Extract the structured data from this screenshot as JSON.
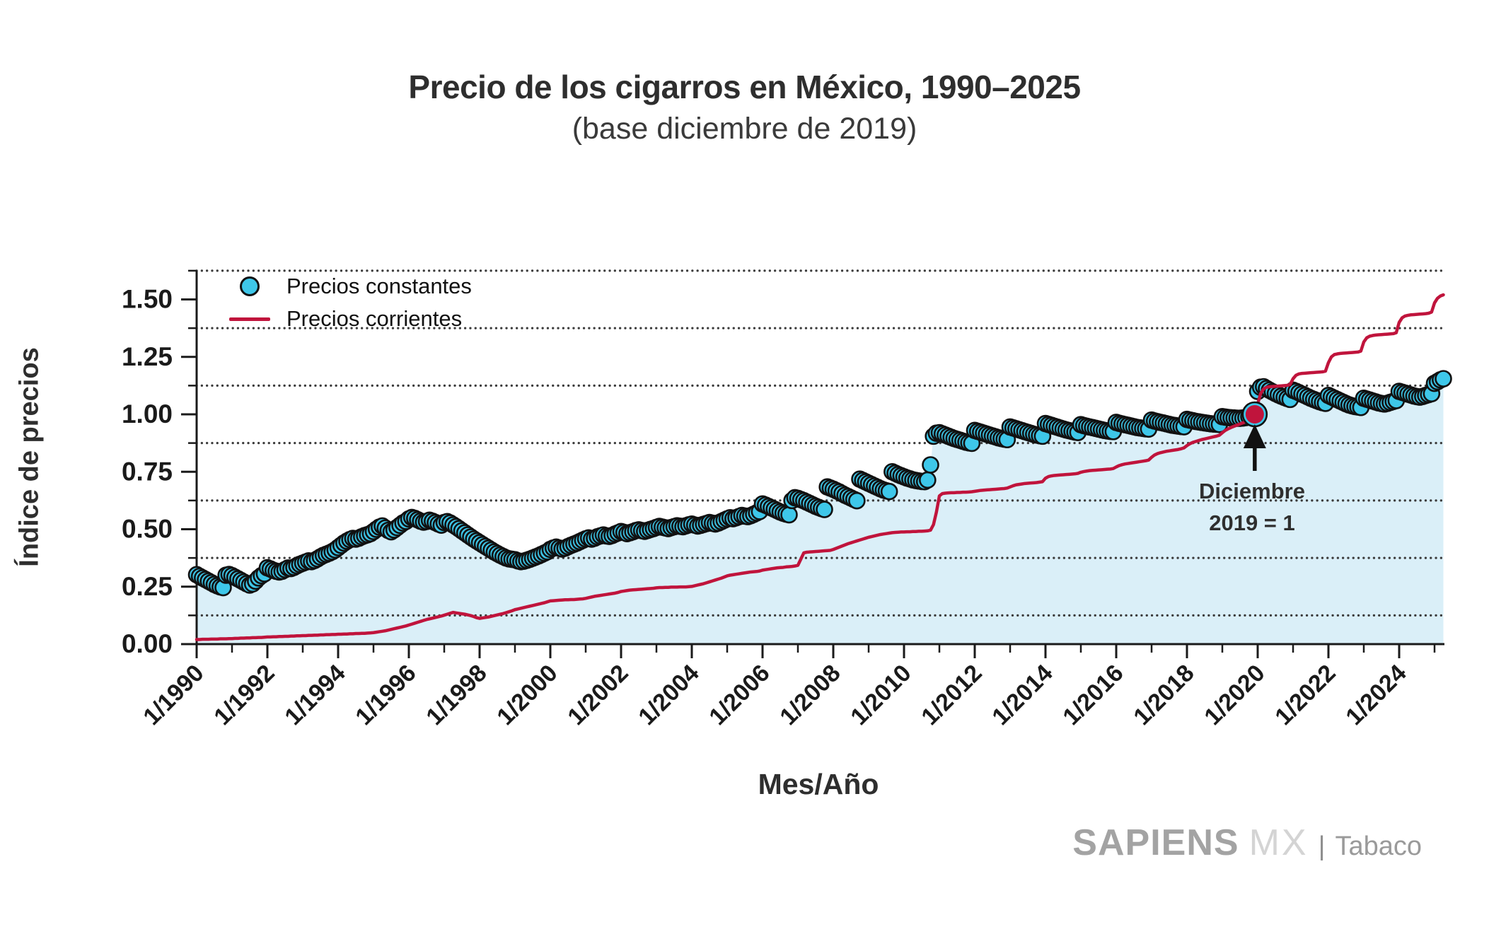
{
  "title": "Precio de los cigarros en México, 1990–2025",
  "subtitle": "(base diciembre de 2019)",
  "x_axis_label": "Mes/Año",
  "y_axis_label": "Índice de precios",
  "legend": [
    {
      "label": "Precios constantes",
      "marker": "dot",
      "color": "#3EC7E9"
    },
    {
      "label": "Precios corrientes",
      "marker": "line",
      "color": "#C0143C"
    }
  ],
  "annotation": {
    "line1": "Diciembre",
    "line2": "2019 = 1",
    "points_to": "12/2019",
    "value": 1.0
  },
  "branding": {
    "brand_bold": "SAPIENS",
    "brand_light": "MX",
    "separator": "|",
    "brand_suffix": "Tabaco"
  },
  "colors": {
    "dot_fill": "#3EC7E9",
    "dot_stroke": "#111111",
    "line": "#C0143C",
    "area_fill": "#DAEFF8",
    "grid": "#3a3a3a",
    "axis": "#1a1a1a",
    "text": "#2e2e2e",
    "marker_highlight": "#C0143C"
  },
  "chart_data": {
    "type": "scatter",
    "frequency": "monthly",
    "x_start": "1/1990",
    "x_end": "4/2025",
    "ylim": [
      0,
      1.625
    ],
    "grid": "dotted horizontal at minor ticks",
    "legend_position": "upper left inside plot",
    "y_ticks": [
      0.0,
      0.25,
      0.5,
      0.75,
      1.0,
      1.25,
      1.5
    ],
    "y_tick_labels": [
      "0.00",
      "0.25",
      "0.50",
      "0.75",
      "1.00",
      "1.25",
      "1.50"
    ],
    "gridlines": [
      0.125,
      0.375,
      0.625,
      0.875,
      1.125,
      1.375,
      1.625
    ],
    "x_tick_labels": [
      "1/1990",
      "1/1992",
      "1/1994",
      "1/1996",
      "1/1998",
      "1/2000",
      "1/2002",
      "1/2004",
      "1/2006",
      "1/2008",
      "1/2010",
      "1/2012",
      "1/2014",
      "1/2016",
      "1/2018",
      "1/2020",
      "1/2022",
      "1/2024"
    ],
    "x_minor_tick_years": [
      1991,
      1993,
      1995,
      1997,
      1999,
      2001,
      2003,
      2005,
      2007,
      2009,
      2011,
      2013,
      2015,
      2017,
      2019,
      2021,
      2023,
      2025
    ],
    "base_point": {
      "x": "12/2019",
      "value": 1.0
    },
    "series": [
      {
        "name": "Precios constantes",
        "type": "scatter",
        "color": "#3EC7E9",
        "values": [
          0.302,
          0.295,
          0.288,
          0.281,
          0.274,
          0.267,
          0.26,
          0.254,
          0.249,
          0.246,
          0.3,
          0.303,
          0.298,
          0.291,
          0.284,
          0.277,
          0.27,
          0.263,
          0.257,
          0.262,
          0.274,
          0.288,
          0.298,
          0.306,
          0.332,
          0.327,
          0.321,
          0.317,
          0.314,
          0.317,
          0.324,
          0.331,
          0.329,
          0.334,
          0.341,
          0.347,
          0.352,
          0.357,
          0.362,
          0.359,
          0.364,
          0.371,
          0.379,
          0.386,
          0.391,
          0.396,
          0.402,
          0.41,
          0.42,
          0.43,
          0.44,
          0.448,
          0.455,
          0.46,
          0.457,
          0.461,
          0.467,
          0.472,
          0.476,
          0.481,
          0.49,
          0.5,
          0.509,
          0.514,
          0.505,
          0.495,
          0.489,
          0.497,
          0.507,
          0.517,
          0.527,
          0.534,
          0.545,
          0.551,
          0.547,
          0.541,
          0.535,
          0.531,
          0.534,
          0.539,
          0.535,
          0.529,
          0.523,
          0.518,
          0.529,
          0.533,
          0.527,
          0.519,
          0.511,
          0.502,
          0.493,
          0.484,
          0.475,
          0.466,
          0.457,
          0.449,
          0.441,
          0.433,
          0.425,
          0.417,
          0.409,
          0.401,
          0.394,
          0.387,
          0.381,
          0.375,
          0.371,
          0.369,
          0.367,
          0.362,
          0.359,
          0.361,
          0.365,
          0.369,
          0.374,
          0.379,
          0.384,
          0.39,
          0.396,
          0.402,
          0.412,
          0.418,
          0.422,
          0.418,
          0.414,
          0.418,
          0.424,
          0.43,
          0.435,
          0.44,
          0.446,
          0.452,
          0.458,
          0.462,
          0.457,
          0.461,
          0.467,
          0.471,
          0.475,
          0.471,
          0.469,
          0.473,
          0.479,
          0.484,
          0.49,
          0.486,
          0.481,
          0.485,
          0.489,
          0.494,
          0.497,
          0.494,
          0.491,
          0.495,
          0.499,
          0.503,
          0.508,
          0.512,
          0.509,
          0.506,
          0.503,
          0.507,
          0.511,
          0.515,
          0.513,
          0.511,
          0.515,
          0.519,
          0.522,
          0.518,
          0.514,
          0.517,
          0.521,
          0.525,
          0.529,
          0.526,
          0.523,
          0.527,
          0.533,
          0.539,
          0.545,
          0.55,
          0.546,
          0.55,
          0.555,
          0.56,
          0.557,
          0.555,
          0.559,
          0.565,
          0.571,
          0.577,
          0.61,
          0.605,
          0.599,
          0.593,
          0.587,
          0.581,
          0.575,
          0.57,
          0.566,
          0.563,
          0.625,
          0.637,
          0.634,
          0.629,
          0.624,
          0.618,
          0.612,
          0.606,
          0.6,
          0.595,
          0.59,
          0.586,
          0.684,
          0.679,
          0.674,
          0.668,
          0.662,
          0.655,
          0.648,
          0.642,
          0.636,
          0.63,
          0.624,
          0.718,
          0.712,
          0.706,
          0.7,
          0.694,
          0.688,
          0.682,
          0.676,
          0.671,
          0.667,
          0.664,
          0.75,
          0.744,
          0.738,
          0.733,
          0.728,
          0.723,
          0.719,
          0.715,
          0.712,
          0.71,
          0.708,
          0.707,
          0.714,
          0.78,
          0.905,
          0.918,
          0.92,
          0.915,
          0.91,
          0.905,
          0.9,
          0.895,
          0.891,
          0.887,
          0.883,
          0.879,
          0.876,
          0.874,
          0.93,
          0.926,
          0.922,
          0.918,
          0.914,
          0.91,
          0.906,
          0.902,
          0.898,
          0.895,
          0.892,
          0.89,
          0.945,
          0.941,
          0.937,
          0.933,
          0.929,
          0.925,
          0.921,
          0.917,
          0.913,
          0.91,
          0.907,
          0.905,
          0.96,
          0.956,
          0.952,
          0.948,
          0.944,
          0.94,
          0.936,
          0.932,
          0.929,
          0.926,
          0.923,
          0.921,
          0.955,
          0.951,
          0.948,
          0.945,
          0.942,
          0.939,
          0.936,
          0.933,
          0.93,
          0.928,
          0.926,
          0.925,
          0.965,
          0.961,
          0.958,
          0.955,
          0.952,
          0.949,
          0.946,
          0.943,
          0.941,
          0.939,
          0.937,
          0.936,
          0.975,
          0.971,
          0.968,
          0.965,
          0.962,
          0.959,
          0.956,
          0.953,
          0.951,
          0.949,
          0.947,
          0.946,
          0.978,
          0.975,
          0.972,
          0.969,
          0.967,
          0.965,
          0.963,
          0.961,
          0.959,
          0.958,
          0.957,
          0.956,
          0.99,
          0.988,
          0.986,
          0.985,
          0.984,
          0.983,
          0.983,
          0.984,
          0.986,
          0.99,
          0.995,
          1.0,
          1.1,
          1.118,
          1.12,
          1.112,
          1.105,
          1.098,
          1.091,
          1.085,
          1.079,
          1.074,
          1.069,
          1.065,
          1.105,
          1.1,
          1.094,
          1.088,
          1.082,
          1.076,
          1.07,
          1.065,
          1.06,
          1.055,
          1.051,
          1.048,
          1.082,
          1.076,
          1.07,
          1.064,
          1.058,
          1.052,
          1.046,
          1.041,
          1.037,
          1.034,
          1.032,
          1.03,
          1.07,
          1.066,
          1.062,
          1.058,
          1.054,
          1.05,
          1.047,
          1.045,
          1.048,
          1.052,
          1.056,
          1.06,
          1.1,
          1.096,
          1.092,
          1.088,
          1.084,
          1.08,
          1.077,
          1.075,
          1.078,
          1.082,
          1.086,
          1.09,
          1.135,
          1.142,
          1.15,
          1.155
        ]
      },
      {
        "name": "Precios corrientes",
        "type": "line",
        "color": "#C0143C",
        "values": [
          0.02,
          0.02,
          0.021,
          0.021,
          0.021,
          0.022,
          0.022,
          0.022,
          0.023,
          0.023,
          0.023,
          0.024,
          0.024,
          0.025,
          0.025,
          0.026,
          0.026,
          0.027,
          0.027,
          0.028,
          0.028,
          0.029,
          0.029,
          0.03,
          0.031,
          0.031,
          0.032,
          0.032,
          0.033,
          0.033,
          0.034,
          0.034,
          0.035,
          0.035,
          0.036,
          0.036,
          0.037,
          0.037,
          0.038,
          0.038,
          0.039,
          0.039,
          0.04,
          0.04,
          0.041,
          0.041,
          0.042,
          0.042,
          0.043,
          0.043,
          0.044,
          0.044,
          0.045,
          0.045,
          0.046,
          0.046,
          0.047,
          0.047,
          0.048,
          0.049,
          0.05,
          0.052,
          0.054,
          0.056,
          0.058,
          0.061,
          0.064,
          0.067,
          0.07,
          0.073,
          0.076,
          0.079,
          0.083,
          0.087,
          0.091,
          0.095,
          0.099,
          0.103,
          0.107,
          0.11,
          0.113,
          0.116,
          0.119,
          0.122,
          0.126,
          0.13,
          0.134,
          0.138,
          0.136,
          0.134,
          0.132,
          0.13,
          0.127,
          0.124,
          0.12,
          0.115,
          0.112,
          0.114,
          0.116,
          0.118,
          0.121,
          0.124,
          0.127,
          0.13,
          0.133,
          0.137,
          0.141,
          0.145,
          0.15,
          0.153,
          0.156,
          0.159,
          0.162,
          0.165,
          0.168,
          0.171,
          0.174,
          0.177,
          0.18,
          0.184,
          0.188,
          0.189,
          0.19,
          0.191,
          0.192,
          0.193,
          0.193,
          0.194,
          0.194,
          0.195,
          0.196,
          0.197,
          0.199,
          0.202,
          0.205,
          0.208,
          0.21,
          0.212,
          0.214,
          0.216,
          0.218,
          0.22,
          0.222,
          0.225,
          0.229,
          0.231,
          0.233,
          0.235,
          0.236,
          0.237,
          0.238,
          0.239,
          0.24,
          0.241,
          0.242,
          0.243,
          0.245,
          0.246,
          0.246,
          0.247,
          0.247,
          0.248,
          0.248,
          0.248,
          0.249,
          0.249,
          0.249,
          0.25,
          0.251,
          0.254,
          0.257,
          0.26,
          0.263,
          0.267,
          0.271,
          0.275,
          0.279,
          0.283,
          0.287,
          0.292,
          0.297,
          0.3,
          0.302,
          0.304,
          0.306,
          0.308,
          0.31,
          0.312,
          0.314,
          0.315,
          0.316,
          0.318,
          0.322,
          0.324,
          0.326,
          0.328,
          0.33,
          0.332,
          0.333,
          0.334,
          0.336,
          0.337,
          0.338,
          0.34,
          0.343,
          0.37,
          0.397,
          0.4,
          0.401,
          0.402,
          0.403,
          0.404,
          0.405,
          0.406,
          0.407,
          0.408,
          0.412,
          0.417,
          0.422,
          0.427,
          0.432,
          0.437,
          0.441,
          0.445,
          0.449,
          0.453,
          0.457,
          0.461,
          0.465,
          0.468,
          0.471,
          0.474,
          0.477,
          0.479,
          0.481,
          0.483,
          0.485,
          0.486,
          0.487,
          0.488,
          0.488,
          0.489,
          0.489,
          0.49,
          0.49,
          0.491,
          0.491,
          0.492,
          0.493,
          0.496,
          0.52,
          0.575,
          0.645,
          0.655,
          0.657,
          0.658,
          0.659,
          0.659,
          0.66,
          0.66,
          0.661,
          0.661,
          0.662,
          0.663,
          0.665,
          0.667,
          0.669,
          0.67,
          0.671,
          0.672,
          0.673,
          0.674,
          0.675,
          0.676,
          0.677,
          0.679,
          0.684,
          0.689,
          0.693,
          0.695,
          0.697,
          0.699,
          0.7,
          0.701,
          0.702,
          0.703,
          0.705,
          0.707,
          0.722,
          0.729,
          0.732,
          0.734,
          0.735,
          0.736,
          0.737,
          0.738,
          0.739,
          0.74,
          0.741,
          0.743,
          0.748,
          0.751,
          0.753,
          0.755,
          0.756,
          0.757,
          0.758,
          0.759,
          0.76,
          0.761,
          0.762,
          0.764,
          0.771,
          0.777,
          0.781,
          0.784,
          0.786,
          0.788,
          0.79,
          0.792,
          0.794,
          0.796,
          0.798,
          0.801,
          0.813,
          0.823,
          0.829,
          0.833,
          0.836,
          0.839,
          0.841,
          0.843,
          0.845,
          0.847,
          0.85,
          0.854,
          0.864,
          0.872,
          0.878,
          0.882,
          0.886,
          0.89,
          0.893,
          0.896,
          0.899,
          0.902,
          0.905,
          0.909,
          0.92,
          0.93,
          0.937,
          0.943,
          0.948,
          0.953,
          0.958,
          0.963,
          0.968,
          0.974,
          0.984,
          1.0,
          1.045,
          1.09,
          1.11,
          1.118,
          1.12,
          1.121,
          1.122,
          1.123,
          1.124,
          1.125,
          1.126,
          1.13,
          1.155,
          1.17,
          1.176,
          1.178,
          1.179,
          1.18,
          1.181,
          1.182,
          1.183,
          1.184,
          1.185,
          1.188,
          1.225,
          1.25,
          1.26,
          1.263,
          1.265,
          1.266,
          1.267,
          1.268,
          1.269,
          1.27,
          1.271,
          1.275,
          1.315,
          1.333,
          1.34,
          1.343,
          1.345,
          1.346,
          1.347,
          1.348,
          1.349,
          1.35,
          1.351,
          1.355,
          1.4,
          1.42,
          1.428,
          1.431,
          1.433,
          1.434,
          1.435,
          1.436,
          1.437,
          1.438,
          1.44,
          1.445,
          1.485,
          1.505,
          1.515,
          1.52
        ]
      }
    ]
  }
}
